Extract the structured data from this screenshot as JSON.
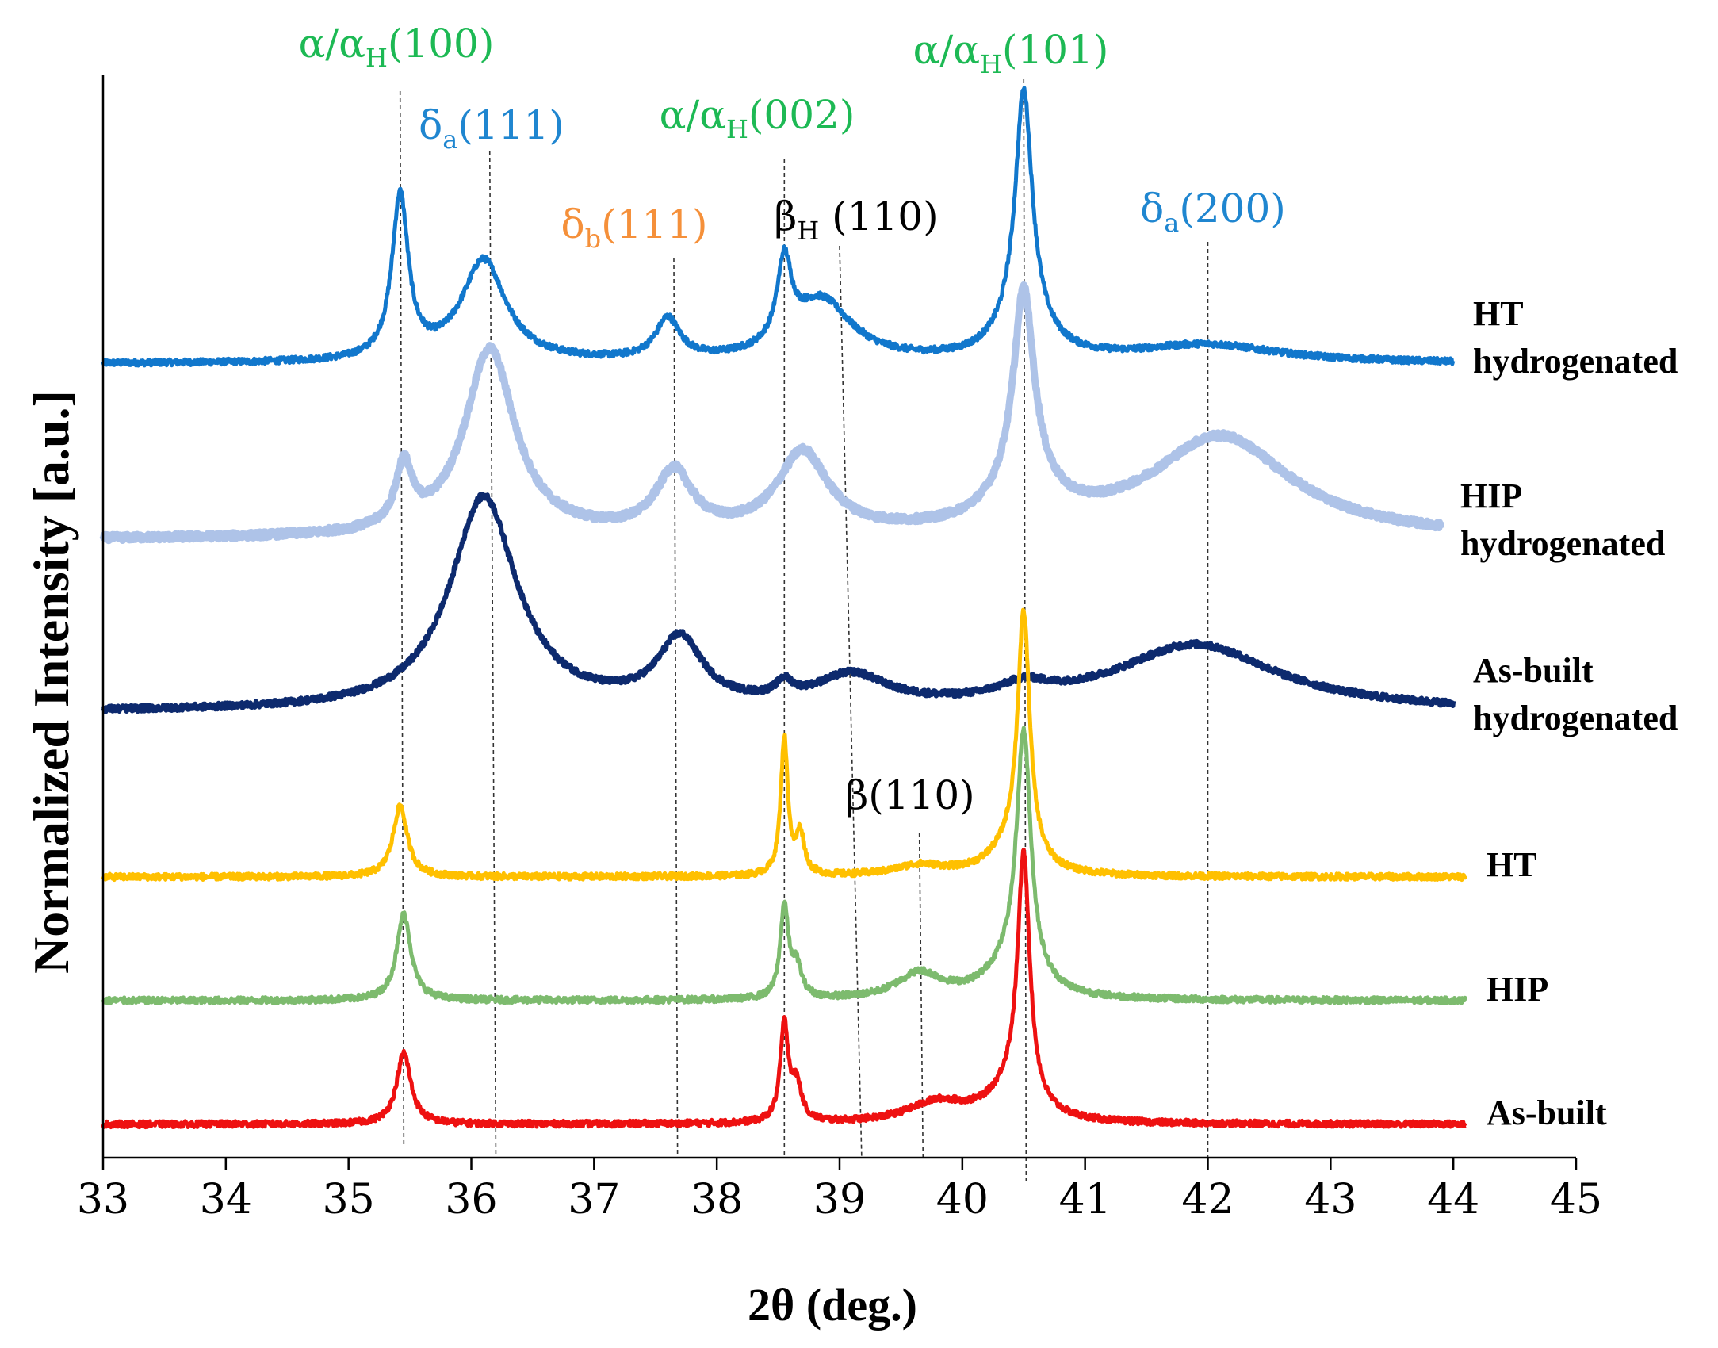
{
  "chart_data": {
    "type": "line",
    "xlabel": "2θ (deg.)",
    "ylabel": "Normalized Intensity [a.u.]",
    "xlim": [
      33,
      45
    ],
    "xticks": [
      33,
      34,
      35,
      36,
      37,
      38,
      39,
      40,
      41,
      42,
      43,
      44,
      45
    ],
    "grid": false,
    "peak_labels": [
      {
        "main": "α/α",
        "sub": "H",
        "tail": "(100)",
        "color": "#1db954",
        "x": 35.42
      },
      {
        "main": "δ",
        "sub": "a",
        "tail": "(111)",
        "color": "#1f86d0",
        "x": 36.15
      },
      {
        "main": "δ",
        "sub": "b",
        "tail": "(111)",
        "color": "#f5903a",
        "x": 37.65
      },
      {
        "main": "α/α",
        "sub": "H",
        "tail": "(002)",
        "color": "#1db954",
        "x": 38.55
      },
      {
        "main": "β",
        "sub": "H",
        "tail": " (110)",
        "color": "#000000",
        "x": 39.0
      },
      {
        "main": "α/α",
        "sub": "H",
        "tail": "(101)",
        "color": "#1db954",
        "x": 40.5
      },
      {
        "main": "δ",
        "sub": "a",
        "tail": "(200)",
        "color": "#1f86d0",
        "x": 42.0
      },
      {
        "main": "β(110)",
        "sub": "",
        "tail": "",
        "color": "#000000",
        "x": 39.65
      }
    ],
    "series": [
      {
        "name": "HT hydrogenated",
        "label_lines": [
          "HT",
          "hydrogenated"
        ],
        "color": "#1177cc",
        "x_range": [
          33,
          44
        ],
        "baseline": 0.03,
        "peaks": [
          [
            35.42,
            0.32,
            0.08
          ],
          [
            36.1,
            0.2,
            0.22
          ],
          [
            37.6,
            0.08,
            0.12
          ],
          [
            38.55,
            0.16,
            0.07
          ],
          [
            38.85,
            0.12,
            0.3
          ],
          [
            40.5,
            0.43,
            0.08
          ],
          [
            40.5,
            0.1,
            0.2
          ],
          [
            42.0,
            0.035,
            0.7
          ]
        ]
      },
      {
        "name": "HIP hydrogenated",
        "label_lines": [
          "HIP",
          "hydrogenated"
        ],
        "color": "#aec3e8",
        "x_range": [
          33,
          43.9
        ],
        "baseline": 0.03,
        "peaks": [
          [
            35.45,
            0.12,
            0.08
          ],
          [
            36.15,
            0.37,
            0.25
          ],
          [
            37.65,
            0.12,
            0.18
          ],
          [
            38.7,
            0.16,
            0.25
          ],
          [
            40.5,
            0.38,
            0.1
          ],
          [
            40.5,
            0.08,
            0.3
          ],
          [
            42.1,
            0.2,
            0.7
          ]
        ]
      },
      {
        "name": "As-built hydrogenated",
        "label_lines": [
          "As-built",
          "hydrogenated"
        ],
        "color": "#0d2a6e",
        "x_range": [
          33,
          44
        ],
        "baseline": 0.0,
        "peaks": [
          [
            36.1,
            0.42,
            0.33
          ],
          [
            37.7,
            0.13,
            0.22
          ],
          [
            38.55,
            0.03,
            0.08
          ],
          [
            39.1,
            0.06,
            0.35
          ],
          [
            40.5,
            0.03,
            0.25
          ],
          [
            41.9,
            0.13,
            0.8
          ]
        ]
      },
      {
        "name": "HT",
        "label_lines": [
          "HT"
        ],
        "color": "#ffc000",
        "x_range": [
          33,
          44.1
        ],
        "baseline": 0.0,
        "peaks": [
          [
            35.42,
            0.14,
            0.07
          ],
          [
            38.55,
            0.27,
            0.035
          ],
          [
            38.68,
            0.08,
            0.04
          ],
          [
            39.65,
            0.02,
            0.25
          ],
          [
            40.5,
            0.48,
            0.06
          ],
          [
            40.4,
            0.05,
            0.22
          ]
        ]
      },
      {
        "name": "HIP",
        "label_lines": [
          "HIP"
        ],
        "color": "#7dbb6e",
        "x_range": [
          33,
          44.1
        ],
        "baseline": 0.0,
        "peaks": [
          [
            35.45,
            0.17,
            0.07
          ],
          [
            38.55,
            0.18,
            0.04
          ],
          [
            38.65,
            0.06,
            0.05
          ],
          [
            39.65,
            0.05,
            0.22
          ],
          [
            40.5,
            0.48,
            0.07
          ],
          [
            40.4,
            0.06,
            0.25
          ]
        ]
      },
      {
        "name": "As-built",
        "label_lines": [
          "As-built"
        ],
        "color": "#ee1111",
        "x_range": [
          33,
          44.1
        ],
        "baseline": 0.0,
        "peaks": [
          [
            35.45,
            0.14,
            0.07
          ],
          [
            38.55,
            0.19,
            0.04
          ],
          [
            38.65,
            0.07,
            0.05
          ],
          [
            39.8,
            0.04,
            0.3
          ],
          [
            40.5,
            0.48,
            0.06
          ],
          [
            40.4,
            0.06,
            0.22
          ]
        ]
      }
    ]
  }
}
